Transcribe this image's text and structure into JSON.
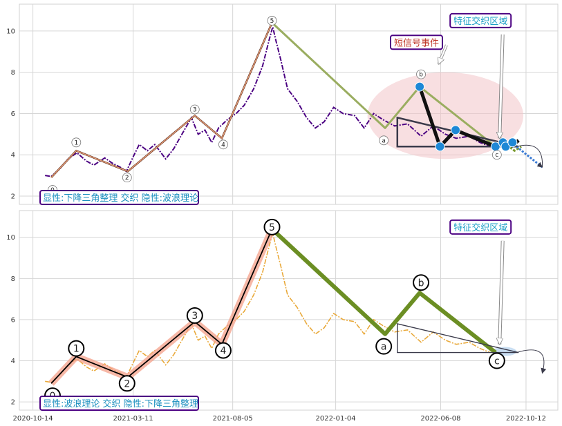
{
  "chart_data": [
    {
      "type": "line",
      "panel": "top",
      "x_ticks": [
        "2020-10-14",
        "2021-03-11",
        "2021-08-05",
        "2022-01-04",
        "2022-06-08",
        "2022-10-12"
      ],
      "y_ticks": [
        2,
        4,
        6,
        8,
        10
      ],
      "ylim": [
        1.6,
        11.3
      ],
      "xlim": [
        "2020-09-24",
        "2022-11-28"
      ],
      "grid": true,
      "price_series": {
        "color": "#4b0082",
        "style": "dash-dot",
        "points": [
          [
            "2020-11-01",
            3.0
          ],
          [
            "2020-11-10",
            2.95
          ],
          [
            "2020-11-22",
            3.3
          ],
          [
            "2020-12-05",
            3.8
          ],
          [
            "2020-12-18",
            4.1
          ],
          [
            "2021-01-01",
            3.7
          ],
          [
            "2021-01-12",
            3.5
          ],
          [
            "2021-01-28",
            3.85
          ],
          [
            "2021-02-08",
            3.6
          ],
          [
            "2021-02-20",
            3.4
          ],
          [
            "2021-03-01",
            3.2
          ],
          [
            "2021-03-11",
            3.9
          ],
          [
            "2021-03-20",
            4.5
          ],
          [
            "2021-04-01",
            4.2
          ],
          [
            "2021-04-12",
            4.5
          ],
          [
            "2021-04-28",
            3.8
          ],
          [
            "2021-05-10",
            4.3
          ],
          [
            "2021-05-22",
            5.0
          ],
          [
            "2021-06-05",
            5.8
          ],
          [
            "2021-06-15",
            5.0
          ],
          [
            "2021-06-25",
            5.2
          ],
          [
            "2021-07-05",
            4.6
          ],
          [
            "2021-07-15",
            5.3
          ],
          [
            "2021-07-28",
            5.7
          ],
          [
            "2021-08-10",
            6.0
          ],
          [
            "2021-08-22",
            6.4
          ],
          [
            "2021-09-05",
            7.2
          ],
          [
            "2021-09-18",
            8.3
          ],
          [
            "2021-09-28",
            9.6
          ],
          [
            "2021-10-03",
            10.2
          ],
          [
            "2021-10-08",
            9.5
          ],
          [
            "2021-10-15",
            8.6
          ],
          [
            "2021-10-25",
            7.2
          ],
          [
            "2021-11-08",
            6.6
          ],
          [
            "2021-11-22",
            5.8
          ],
          [
            "2021-12-05",
            5.3
          ],
          [
            "2021-12-18",
            5.6
          ],
          [
            "2022-01-01",
            6.3
          ],
          [
            "2022-01-15",
            6.0
          ],
          [
            "2022-02-01",
            5.9
          ],
          [
            "2022-02-15",
            5.3
          ],
          [
            "2022-03-01",
            6.0
          ],
          [
            "2022-03-15",
            5.7
          ],
          [
            "2022-04-01",
            5.4
          ],
          [
            "2022-04-20",
            5.5
          ],
          [
            "2022-05-10",
            4.9
          ],
          [
            "2022-05-28",
            5.4
          ],
          [
            "2022-06-15",
            5.0
          ],
          [
            "2022-07-01",
            4.8
          ],
          [
            "2022-07-20",
            4.9
          ],
          [
            "2022-08-05",
            4.6
          ],
          [
            "2022-08-20",
            4.4
          ]
        ]
      },
      "wave_path": {
        "color": "#e8a07a",
        "points": [
          [
            "2020-11-10",
            2.9
          ],
          [
            "2020-12-17",
            4.2
          ],
          [
            "2021-03-03",
            3.2
          ],
          [
            "2021-06-10",
            5.9
          ],
          [
            "2021-07-20",
            4.8
          ],
          [
            "2021-10-02",
            10.4
          ]
        ]
      },
      "abc_path": {
        "color": "#9aad60",
        "points": [
          [
            "2021-10-02",
            10.4
          ],
          [
            "2022-03-18",
            5.3
          ],
          [
            "2022-05-08",
            7.3
          ],
          [
            "2022-08-28",
            4.4
          ]
        ]
      },
      "wave_labels": [
        {
          "text": "0",
          "x": "2020-11-12",
          "y": 2.3
        },
        {
          "text": "1",
          "x": "2020-12-17",
          "y": 4.6
        },
        {
          "text": "2",
          "x": "2021-03-02",
          "y": 2.9
        },
        {
          "text": "3",
          "x": "2021-06-10",
          "y": 6.2
        },
        {
          "text": "4",
          "x": "2021-07-22",
          "y": 4.5
        },
        {
          "text": "5",
          "x": "2021-10-02",
          "y": 10.5
        },
        {
          "text": "a",
          "x": "2022-03-16",
          "y": 4.7
        },
        {
          "text": "b",
          "x": "2022-05-10",
          "y": 7.9
        },
        {
          "text": "c",
          "x": "2022-08-30",
          "y": 4.0
        }
      ],
      "triangle": {
        "color": "#3a3a4a",
        "points": [
          [
            "2022-04-05",
            5.8
          ],
          [
            "2022-10-01",
            4.4
          ],
          [
            "2022-04-05",
            4.4
          ]
        ]
      },
      "triangle_fit": {
        "color": "#111111",
        "points": [
          [
            "2022-05-08",
            7.3
          ],
          [
            "2022-06-07",
            4.4
          ],
          [
            "2022-06-30",
            5.2
          ],
          [
            "2022-08-28",
            4.4
          ],
          [
            "2022-09-10",
            4.6
          ],
          [
            "2022-09-20",
            4.4
          ],
          [
            "2022-10-01",
            4.7
          ]
        ]
      },
      "markers": {
        "color": "#1e88d6",
        "points": [
          [
            "2022-05-08",
            7.3
          ],
          [
            "2022-06-07",
            4.4
          ],
          [
            "2022-06-30",
            5.2
          ],
          [
            "2022-08-28",
            4.4
          ],
          [
            "2022-09-08",
            4.6
          ],
          [
            "2022-09-12",
            4.4
          ],
          [
            "2022-09-22",
            4.6
          ]
        ]
      },
      "zigzag": {
        "color": "#7a9a30",
        "points": [
          [
            "2022-09-08",
            4.6
          ],
          [
            "2022-09-25",
            4.2
          ],
          [
            "2022-10-05",
            4.4
          ]
        ]
      },
      "forecast": {
        "color": "#3a7bd5",
        "points": [
          [
            "2022-09-28",
            4.4
          ],
          [
            "2022-10-18",
            3.9
          ],
          [
            "2022-11-05",
            3.4
          ]
        ]
      },
      "highlight_ellipse": {
        "color": "#f2c4c8",
        "cx": "2022-06-15",
        "cy": 5.9,
        "rx_days": 115,
        "ry": 2.1
      },
      "annotations": [
        {
          "text": "短信号事件",
          "text_color": "#c0392b",
          "anchor": "2022-03-26",
          "y": 9.45,
          "arrow_to": [
            "2022-06-05",
            8.4
          ]
        },
        {
          "text": "特征交织区域",
          "text_color": "#1a9fc6",
          "anchor": "2022-06-22",
          "y": 10.5,
          "arrow_to": [
            "2022-09-03",
            4.8
          ]
        }
      ],
      "caption": "显性:下降三角整理 交织 隐性:波浪理论"
    },
    {
      "type": "line",
      "panel": "bottom",
      "x_ticks": [
        "2020-10-14",
        "2021-03-11",
        "2021-08-05",
        "2022-01-04",
        "2022-06-08",
        "2022-10-12"
      ],
      "y_ticks": [
        2,
        4,
        6,
        8,
        10
      ],
      "ylim": [
        1.6,
        11.3
      ],
      "xlim": [
        "2020-09-24",
        "2022-11-28"
      ],
      "grid": true,
      "price_series": {
        "color": "#e9a93a",
        "style": "dash-dot",
        "points": [
          [
            "2020-11-01",
            3.0
          ],
          [
            "2020-11-10",
            2.95
          ],
          [
            "2020-11-22",
            3.3
          ],
          [
            "2020-12-05",
            3.8
          ],
          [
            "2020-12-18",
            4.1
          ],
          [
            "2021-01-01",
            3.7
          ],
          [
            "2021-01-12",
            3.5
          ],
          [
            "2021-01-28",
            3.85
          ],
          [
            "2021-02-08",
            3.6
          ],
          [
            "2021-02-20",
            3.4
          ],
          [
            "2021-03-01",
            3.2
          ],
          [
            "2021-03-11",
            3.9
          ],
          [
            "2021-03-20",
            4.5
          ],
          [
            "2021-04-01",
            4.2
          ],
          [
            "2021-04-12",
            4.5
          ],
          [
            "2021-04-28",
            3.8
          ],
          [
            "2021-05-10",
            4.3
          ],
          [
            "2021-05-22",
            5.0
          ],
          [
            "2021-06-05",
            5.8
          ],
          [
            "2021-06-15",
            5.0
          ],
          [
            "2021-06-25",
            5.2
          ],
          [
            "2021-07-05",
            4.6
          ],
          [
            "2021-07-15",
            5.3
          ],
          [
            "2021-07-28",
            5.7
          ],
          [
            "2021-08-10",
            6.0
          ],
          [
            "2021-08-22",
            6.4
          ],
          [
            "2021-09-05",
            7.2
          ],
          [
            "2021-09-18",
            8.3
          ],
          [
            "2021-09-28",
            9.6
          ],
          [
            "2021-10-03",
            10.2
          ],
          [
            "2021-10-08",
            9.5
          ],
          [
            "2021-10-15",
            8.6
          ],
          [
            "2021-10-25",
            7.2
          ],
          [
            "2021-11-08",
            6.6
          ],
          [
            "2021-11-22",
            5.8
          ],
          [
            "2021-12-05",
            5.3
          ],
          [
            "2021-12-18",
            5.6
          ],
          [
            "2022-01-01",
            6.3
          ],
          [
            "2022-01-15",
            6.0
          ],
          [
            "2022-02-01",
            5.9
          ],
          [
            "2022-02-15",
            5.3
          ],
          [
            "2022-03-01",
            6.0
          ],
          [
            "2022-03-15",
            5.7
          ],
          [
            "2022-04-01",
            5.4
          ],
          [
            "2022-04-20",
            5.5
          ],
          [
            "2022-05-10",
            4.9
          ],
          [
            "2022-05-28",
            5.4
          ],
          [
            "2022-06-15",
            5.0
          ],
          [
            "2022-07-01",
            4.8
          ],
          [
            "2022-07-20",
            4.9
          ],
          [
            "2022-08-05",
            4.6
          ],
          [
            "2022-08-20",
            4.4
          ]
        ]
      },
      "wave_path": {
        "color": "#000000",
        "halo_color": "#f4a08a",
        "points": [
          [
            "2020-11-10",
            2.9
          ],
          [
            "2020-12-17",
            4.2
          ],
          [
            "2021-03-03",
            3.2
          ],
          [
            "2021-06-10",
            5.9
          ],
          [
            "2021-07-20",
            4.8
          ],
          [
            "2021-10-02",
            10.4
          ]
        ]
      },
      "abc_path": {
        "color": "#6b8e23",
        "points": [
          [
            "2021-10-02",
            10.4
          ],
          [
            "2022-03-18",
            5.3
          ],
          [
            "2022-05-08",
            7.3
          ],
          [
            "2022-08-28",
            4.4
          ]
        ]
      },
      "wave_labels": [
        {
          "text": "0",
          "x": "2020-11-12",
          "y": 2.3
        },
        {
          "text": "1",
          "x": "2020-12-17",
          "y": 4.6
        },
        {
          "text": "2",
          "x": "2021-03-02",
          "y": 2.9
        },
        {
          "text": "3",
          "x": "2021-06-10",
          "y": 6.2
        },
        {
          "text": "4",
          "x": "2021-07-22",
          "y": 4.5
        },
        {
          "text": "5",
          "x": "2021-10-02",
          "y": 10.5
        },
        {
          "text": "a",
          "x": "2022-03-16",
          "y": 4.7
        },
        {
          "text": "b",
          "x": "2022-05-10",
          "y": 7.8
        },
        {
          "text": "c",
          "x": "2022-08-30",
          "y": 4.0
        }
      ],
      "triangle": {
        "color": "#3a3a4a",
        "points": [
          [
            "2022-04-05",
            5.8
          ],
          [
            "2022-10-01",
            4.4
          ],
          [
            "2022-04-05",
            4.4
          ]
        ]
      },
      "forecast": {
        "color": "#3a3a4a",
        "points": [
          [
            "2022-09-28",
            4.4
          ],
          [
            "2022-10-18",
            3.9
          ],
          [
            "2022-11-05",
            3.4
          ]
        ]
      },
      "highlight_ellipse": {
        "color": "#bcd6ef",
        "cx": "2022-09-10",
        "cy": 4.45,
        "rx_days": 18,
        "ry": 0.22
      },
      "annotations": [
        {
          "text": "特征交织区域",
          "text_color": "#1a9fc6",
          "anchor": "2022-06-22",
          "y": 10.5,
          "arrow_to": [
            "2022-09-03",
            4.8
          ]
        }
      ],
      "caption": "显性:波浪理论 交织 隐性:下降三角整理"
    }
  ]
}
